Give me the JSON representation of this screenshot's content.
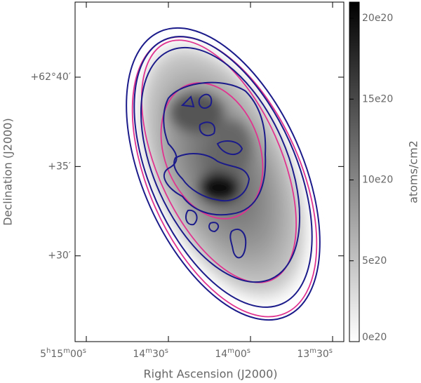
{
  "chart_data": {
    "type": "image",
    "xlabel": "Right Ascension (J2000)",
    "ylabel": "Declination (J2000)",
    "xlim": [
      18904.1,
      18805.9
    ],
    "xticks": [
      {
        "value": 18900,
        "label": "5h15m00s"
      },
      {
        "value": 18870,
        "label": "14m30s"
      },
      {
        "value": 18840,
        "label": "14m00s"
      },
      {
        "value": 18810,
        "label": "13m30s"
      }
    ],
    "ylim": [
      3745.2,
      3764.2
    ],
    "yticks": [
      {
        "value": 3760,
        "label": "+62°40′"
      },
      {
        "value": 3755,
        "label": "+35′"
      },
      {
        "value": 3750,
        "label": "+30′"
      }
    ],
    "colorbar": {
      "label": "atoms/cm2",
      "lim": [
        0,
        2.1e+21
      ],
      "ticks": [
        {
          "value": 0,
          "label": "0e20"
        },
        {
          "value": 5e+20,
          "label": "5e20"
        },
        {
          "value": 1e+21,
          "label": "10e20"
        },
        {
          "value": 1.5e+21,
          "label": "15e20"
        },
        {
          "value": 2e+21,
          "label": "20e20"
        }
      ]
    }
  }
}
